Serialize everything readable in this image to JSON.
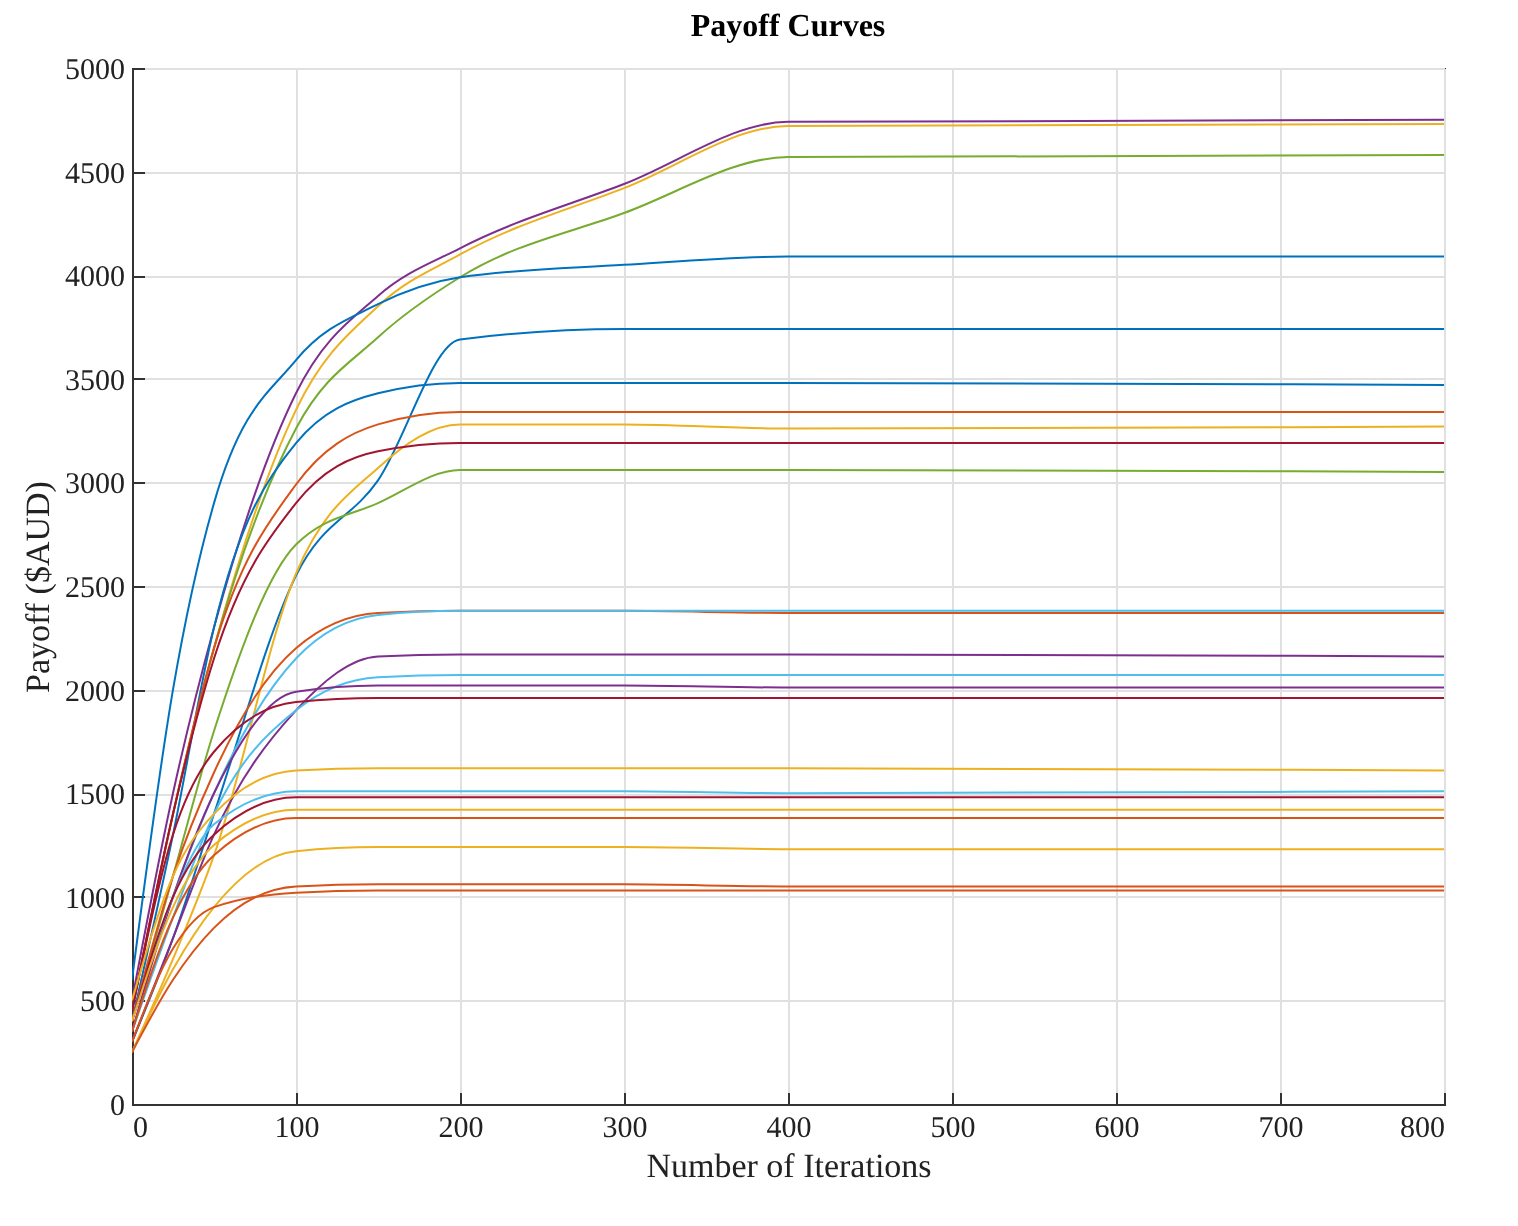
{
  "chart_data": {
    "type": "line",
    "title": "Payoff Curves",
    "xlabel": "Number of Iterations",
    "ylabel": "Payoff ($AUD)",
    "xlim": [
      0,
      800
    ],
    "xticks": [
      0,
      100,
      200,
      300,
      400,
      500,
      600,
      700,
      800
    ],
    "ylim": [
      0,
      5000
    ],
    "yticks": [
      0,
      500,
      1000,
      1500,
      2000,
      2500,
      3000,
      3500,
      4000,
      4500,
      5000
    ],
    "grid": true,
    "legend": false,
    "marker": "none",
    "line_style": "solid",
    "x": [
      0,
      25,
      50,
      100,
      150,
      200,
      300,
      400,
      800
    ],
    "series": [
      {
        "color": "#7e2f8e",
        "values": [
          500,
          1500,
          2300,
          3430,
          3900,
          4130,
          4440,
          4740,
          4750
        ]
      },
      {
        "color": "#edb120",
        "values": [
          450,
          1400,
          2200,
          3350,
          3850,
          4100,
          4420,
          4720,
          4730
        ]
      },
      {
        "color": "#77ac30",
        "values": [
          450,
          1400,
          2200,
          3260,
          3700,
          3990,
          4300,
          4570,
          4580
        ]
      },
      {
        "color": "#0072bd",
        "values": [
          600,
          2000,
          2900,
          3590,
          3860,
          3990,
          4050,
          4090,
          4090
        ]
      },
      {
        "color": "#0072bd",
        "values": [
          300,
          800,
          1400,
          2550,
          3010,
          3690,
          3740,
          3740,
          3740
        ]
      },
      {
        "color": "#0072bd",
        "values": [
          400,
          1300,
          2300,
          3190,
          3430,
          3480,
          3480,
          3480,
          3470
        ]
      },
      {
        "color": "#d95319",
        "values": [
          450,
          1400,
          2200,
          2990,
          3280,
          3340,
          3340,
          3340,
          3340
        ]
      },
      {
        "color": "#edb120",
        "values": [
          250,
          700,
          1200,
          2560,
          3070,
          3280,
          3280,
          3260,
          3270
        ]
      },
      {
        "color": "#a2142f",
        "values": [
          450,
          1400,
          2150,
          2900,
          3150,
          3190,
          3190,
          3190,
          3190
        ]
      },
      {
        "color": "#77ac30",
        "values": [
          400,
          1100,
          1800,
          2700,
          2900,
          3060,
          3060,
          3060,
          3050
        ]
      },
      {
        "color": "#d95319",
        "values": [
          400,
          1100,
          1600,
          2200,
          2370,
          2380,
          2380,
          2370,
          2370
        ]
      },
      {
        "color": "#4dbeee",
        "values": [
          400,
          1000,
          1500,
          2150,
          2360,
          2380,
          2380,
          2380,
          2380
        ]
      },
      {
        "color": "#7e2f8e",
        "values": [
          300,
          800,
          1300,
          1900,
          2160,
          2170,
          2170,
          2170,
          2160
        ]
      },
      {
        "color": "#4dbeee",
        "values": [
          350,
          900,
          1400,
          1900,
          2060,
          2070,
          2070,
          2070,
          2070
        ]
      },
      {
        "color": "#7e2f8e",
        "values": [
          350,
          1000,
          1500,
          1990,
          2020,
          2020,
          2020,
          2010,
          2010
        ]
      },
      {
        "color": "#a2142f",
        "values": [
          450,
          1300,
          1700,
          1940,
          1960,
          1960,
          1960,
          1960,
          1960
        ]
      },
      {
        "color": "#edb120",
        "values": [
          500,
          1100,
          1400,
          1610,
          1620,
          1620,
          1620,
          1620,
          1610
        ]
      },
      {
        "color": "#4dbeee",
        "values": [
          400,
          1000,
          1350,
          1510,
          1510,
          1510,
          1510,
          1500,
          1510
        ]
      },
      {
        "color": "#a2142f",
        "values": [
          400,
          1000,
          1300,
          1480,
          1480,
          1480,
          1480,
          1480,
          1480
        ]
      },
      {
        "color": "#edb120",
        "values": [
          400,
          950,
          1250,
          1420,
          1420,
          1420,
          1420,
          1420,
          1420
        ]
      },
      {
        "color": "#d95319",
        "values": [
          350,
          900,
          1200,
          1380,
          1380,
          1380,
          1380,
          1380,
          1380
        ]
      },
      {
        "color": "#edb120",
        "values": [
          250,
          650,
          950,
          1220,
          1240,
          1240,
          1240,
          1230,
          1230
        ]
      },
      {
        "color": "#d95319",
        "values": [
          250,
          600,
          850,
          1050,
          1060,
          1060,
          1060,
          1050,
          1050
        ]
      },
      {
        "color": "#d95319",
        "values": [
          300,
          750,
          950,
          1020,
          1030,
          1030,
          1030,
          1030,
          1030
        ]
      }
    ]
  }
}
